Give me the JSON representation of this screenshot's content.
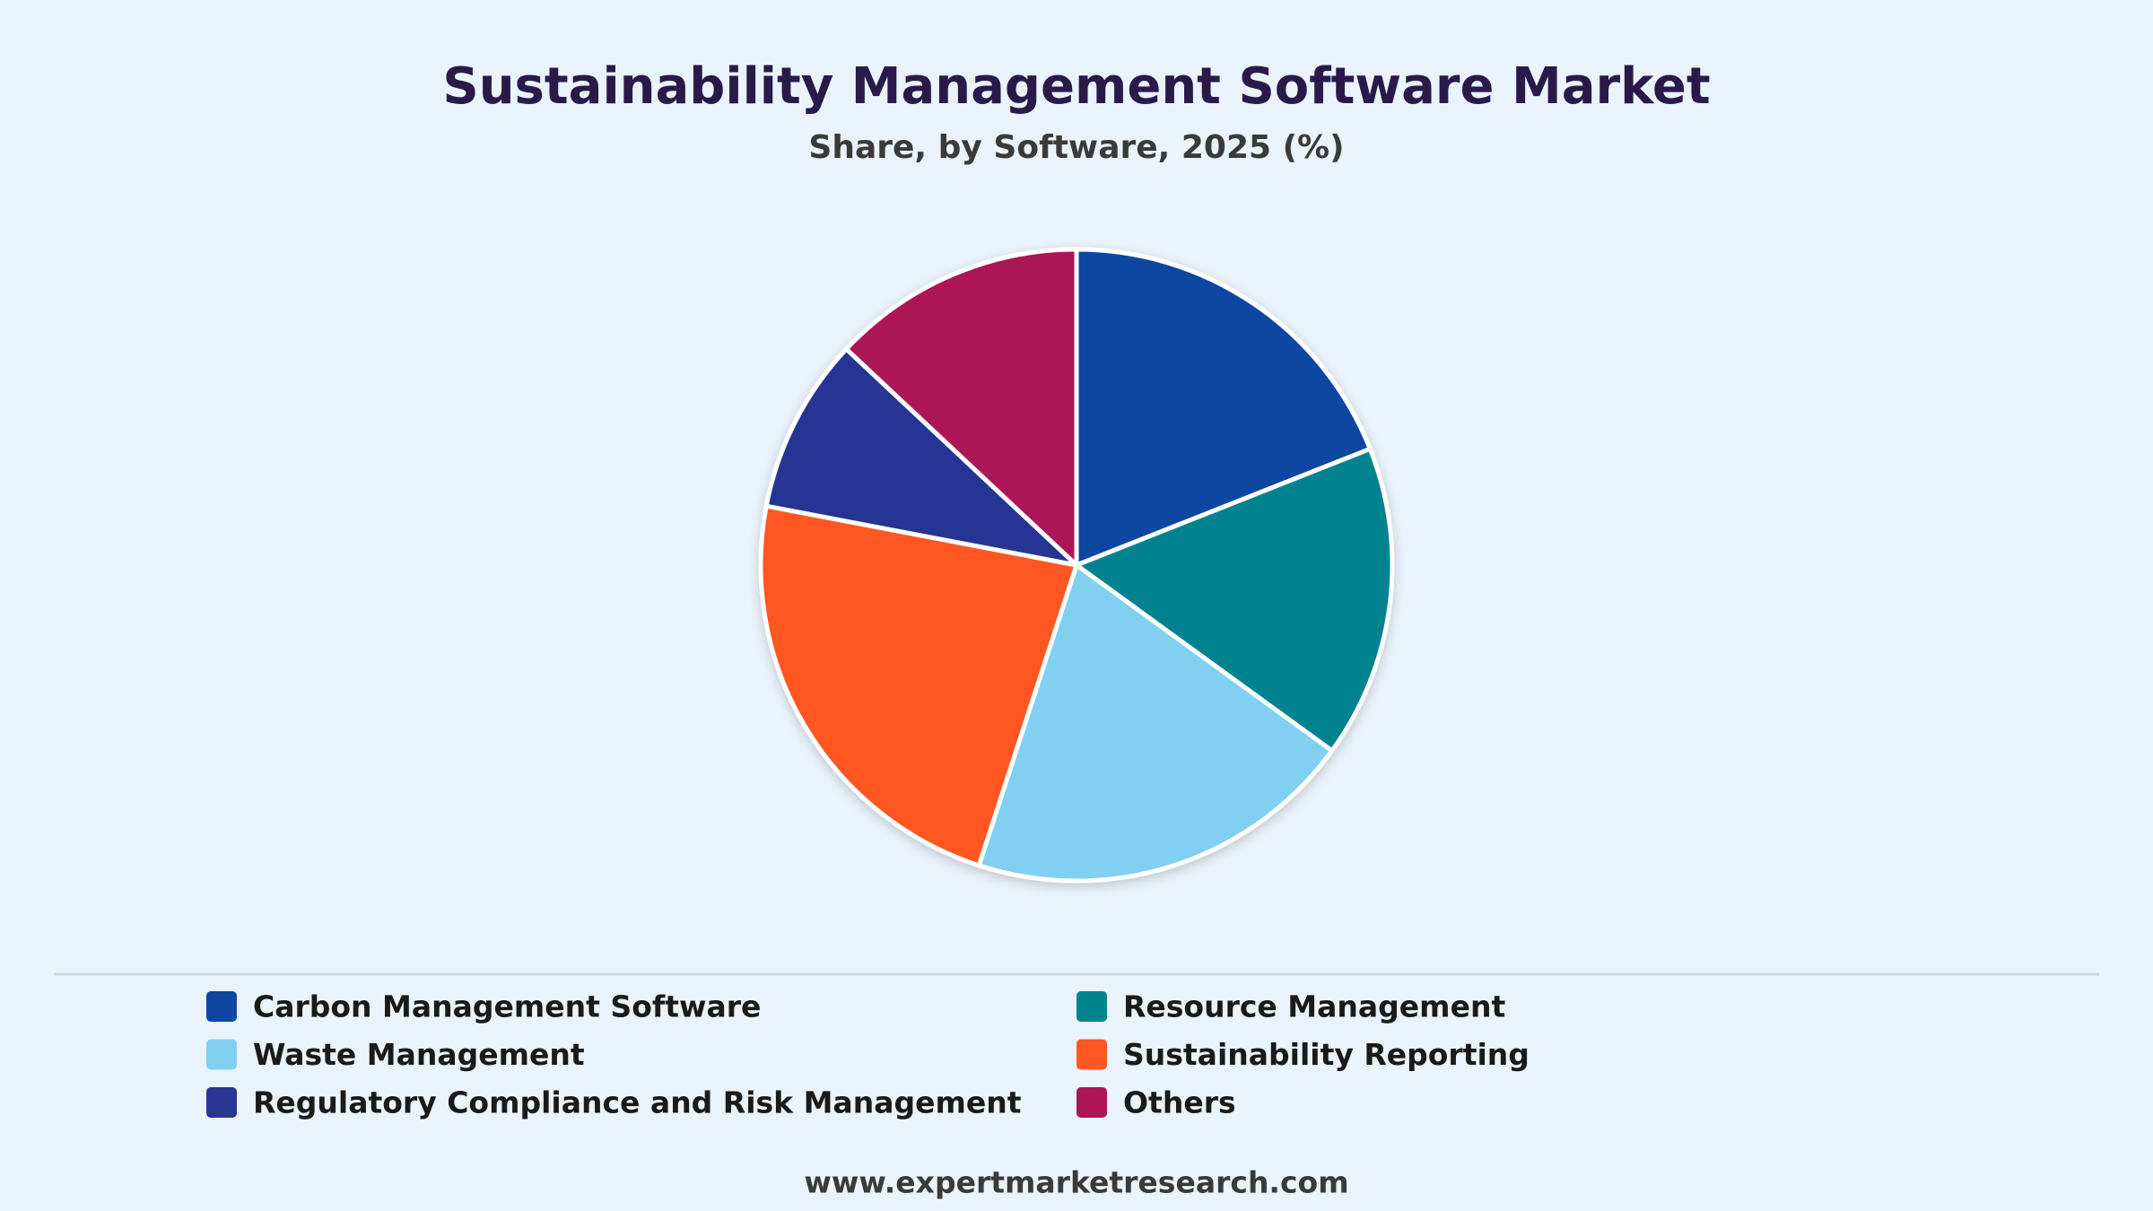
{
  "chart_data": {
    "type": "pie",
    "title": "Sustainability Management Software Market",
    "subtitle": "Share, by Software, 2025 (%)",
    "categories": [
      "Carbon Management Software",
      "Resource Management",
      "Waste Management",
      "Sustainability Reporting",
      "Regulatory Compliance and Risk Management",
      "Others"
    ],
    "values": [
      19,
      16,
      20,
      23,
      9,
      13
    ],
    "colors": [
      "#0d47a1",
      "#00838f",
      "#81d0f1",
      "#ff5722",
      "#283593",
      "#ad1457"
    ],
    "legend": "bottom"
  },
  "footer": "www.expertmarketresearch.com"
}
